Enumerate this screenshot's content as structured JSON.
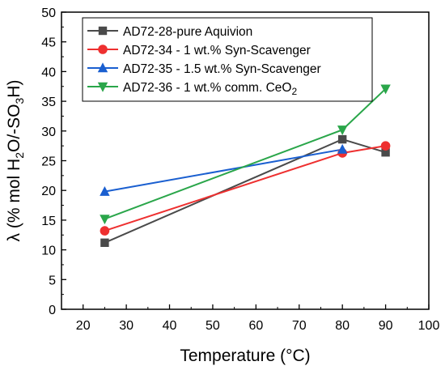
{
  "chart_data": {
    "type": "line",
    "xlabel": "Temperature (°C)",
    "ylabel": {
      "main": "λ (% mol H",
      "sub1": "2",
      "mid": "O/-SO",
      "sub2": "3",
      "tail": "H)"
    },
    "xlim": [
      15,
      100
    ],
    "ylim": [
      0,
      50
    ],
    "xticks": [
      20,
      30,
      40,
      50,
      60,
      70,
      80,
      90,
      100
    ],
    "yticks": [
      0,
      5,
      10,
      15,
      20,
      25,
      30,
      35,
      40,
      45,
      50
    ],
    "grid": false,
    "legend_position": "top-left",
    "series": [
      {
        "name": "AD72-28-pure Aquivion",
        "name_sub": "",
        "color": "#4a4a4a",
        "marker": "square",
        "points": [
          [
            25,
            11.2
          ],
          [
            80,
            28.6
          ],
          [
            90,
            26.4
          ]
        ]
      },
      {
        "name": "AD72-34 - 1 wt.% Syn-Scavenger",
        "name_sub": "",
        "color": "#ee3030",
        "marker": "circle",
        "points": [
          [
            25,
            13.2
          ],
          [
            80,
            26.3
          ],
          [
            90,
            27.5
          ]
        ]
      },
      {
        "name": "AD72-35 - 1.5 wt.% Syn-Scavenger",
        "name_sub": "",
        "color": "#1a5fd0",
        "marker": "triangle-up",
        "points": [
          [
            25,
            19.8
          ],
          [
            80,
            26.9
          ]
        ]
      },
      {
        "name": "AD72-36 - 1 wt.% comm. CeO",
        "name_sub": "2",
        "color": "#2aa64a",
        "marker": "triangle-down",
        "points": [
          [
            25,
            15.2
          ],
          [
            80,
            30.2
          ],
          [
            90,
            37.1
          ]
        ]
      }
    ]
  }
}
